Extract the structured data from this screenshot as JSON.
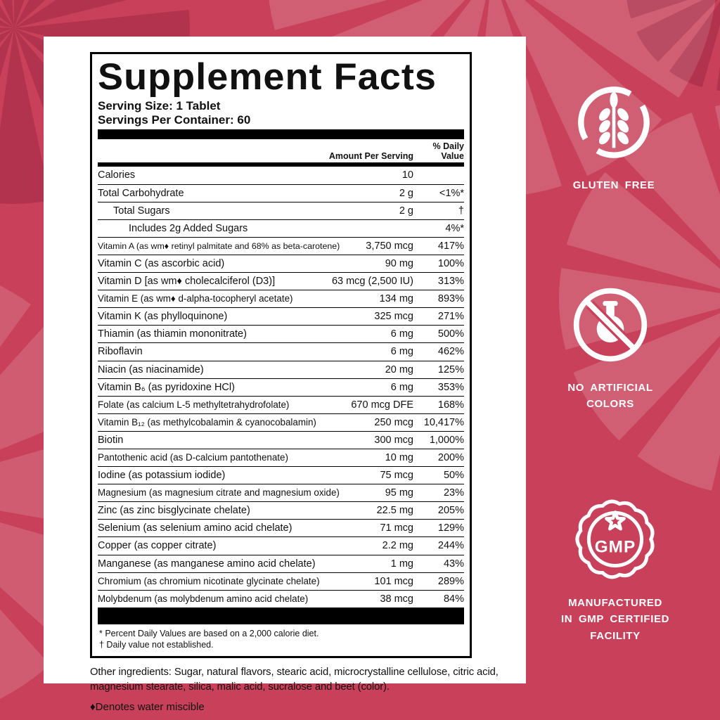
{
  "colors": {
    "background": "#c8405a",
    "pattern_light": "#d4677b",
    "pattern_dark": "#a82740",
    "panel": "#ffffff",
    "text": "#111111",
    "icons": "#ffffff"
  },
  "panel": {
    "title": "Supplement Facts",
    "serving_size": "Serving Size: 1 Tablet",
    "servings_per_container": "Servings Per Container: 60",
    "columns": {
      "amount": "Amount Per Serving",
      "daily_value": "% Daily Value"
    },
    "rows": [
      {
        "name": "Calories",
        "amount": "10",
        "dv": "",
        "indent": 0
      },
      {
        "name": "Total Carbohydrate",
        "amount": "2 g",
        "dv": "<1%*",
        "indent": 0
      },
      {
        "name": "Total Sugars",
        "amount": "2 g",
        "dv": "†",
        "indent": 1
      },
      {
        "name": "Includes 2g Added Sugars",
        "amount": "",
        "dv": "4%*",
        "indent": 2
      },
      {
        "name": "Vitamin A (as wm♦ retinyl palmitate and 68% as beta-carotene)",
        "amount": "3,750 mcg",
        "dv": "417%",
        "indent": 0
      },
      {
        "name": "Vitamin C (as ascorbic acid)",
        "amount": "90 mg",
        "dv": "100%",
        "indent": 0
      },
      {
        "name": "Vitamin D [as wm♦ cholecalciferol (D3)]",
        "amount": "63 mcg (2,500 IU)",
        "dv": "313%",
        "indent": 0
      },
      {
        "name": "Vitamin E (as wm♦ d-alpha-tocopheryl acetate)",
        "amount": "134 mg",
        "dv": "893%",
        "indent": 0
      },
      {
        "name": "Vitamin K (as phylloquinone)",
        "amount": "325 mcg",
        "dv": "271%",
        "indent": 0
      },
      {
        "name": "Thiamin (as thiamin mononitrate)",
        "amount": "6 mg",
        "dv": "500%",
        "indent": 0
      },
      {
        "name": "Riboflavin",
        "amount": "6 mg",
        "dv": "462%",
        "indent": 0
      },
      {
        "name": "Niacin (as niacinamide)",
        "amount": "20 mg",
        "dv": "125%",
        "indent": 0
      },
      {
        "name": "Vitamin B₆ (as pyridoxine HCl)",
        "amount": "6 mg",
        "dv": "353%",
        "indent": 0
      },
      {
        "name": "Folate (as calcium L-5 methyltetrahydrofolate)",
        "amount": "670 mcg DFE",
        "dv": "168%",
        "indent": 0
      },
      {
        "name": "Vitamin B₁₂ (as methylcobalamin & cyanocobalamin)",
        "amount": "250 mcg",
        "dv": "10,417%",
        "indent": 0
      },
      {
        "name": "Biotin",
        "amount": "300 mcg",
        "dv": "1,000%",
        "indent": 0
      },
      {
        "name": "Pantothenic acid (as D-calcium pantothenate)",
        "amount": "10 mg",
        "dv": "200%",
        "indent": 0
      },
      {
        "name": "Iodine (as potassium iodide)",
        "amount": "75 mcg",
        "dv": "50%",
        "indent": 0
      },
      {
        "name": "Magnesium (as magnesium citrate and magnesium oxide)",
        "amount": "95 mg",
        "dv": "23%",
        "indent": 0
      },
      {
        "name": "Zinc (as zinc bisglycinate chelate)",
        "amount": "22.5 mg",
        "dv": "205%",
        "indent": 0
      },
      {
        "name": "Selenium (as selenium amino acid chelate)",
        "amount": "71 mcg",
        "dv": "129%",
        "indent": 0
      },
      {
        "name": "Copper (as copper citrate)",
        "amount": "2.2 mg",
        "dv": "244%",
        "indent": 0
      },
      {
        "name": "Manganese (as manganese amino acid chelate)",
        "amount": "1 mg",
        "dv": "43%",
        "indent": 0
      },
      {
        "name": "Chromium (as chromium nicotinate glycinate chelate)",
        "amount": "101 mcg",
        "dv": "289%",
        "indent": 0
      },
      {
        "name": "Molybdenum (as molybdenum amino acid chelate)",
        "amount": "38 mcg",
        "dv": "84%",
        "indent": 0
      }
    ],
    "footnotes": [
      "* Percent Daily Values are based on a 2,000 calorie diet.",
      "† Daily value not established."
    ],
    "other_ingredients": "Other ingredients: Sugar, natural flavors, stearic acid, microcrystalline cellulose, citric acid, magnesium stearate, silica, malic acid, sucralose and beet (color).",
    "water_miscible_note": "♦Denotes water miscible"
  },
  "badges": [
    {
      "icon": "gluten-free-icon",
      "label_lines": [
        "GLUTEN FREE"
      ]
    },
    {
      "icon": "no-artificial-colors-icon",
      "label_lines": [
        "NO ARTIFICIAL",
        "COLORS"
      ]
    },
    {
      "icon": "gmp-badge-icon",
      "badge_text": "GMP",
      "label_lines": [
        "MANUFACTURED",
        "IN GMP CERTIFIED",
        "FACILITY"
      ]
    }
  ]
}
